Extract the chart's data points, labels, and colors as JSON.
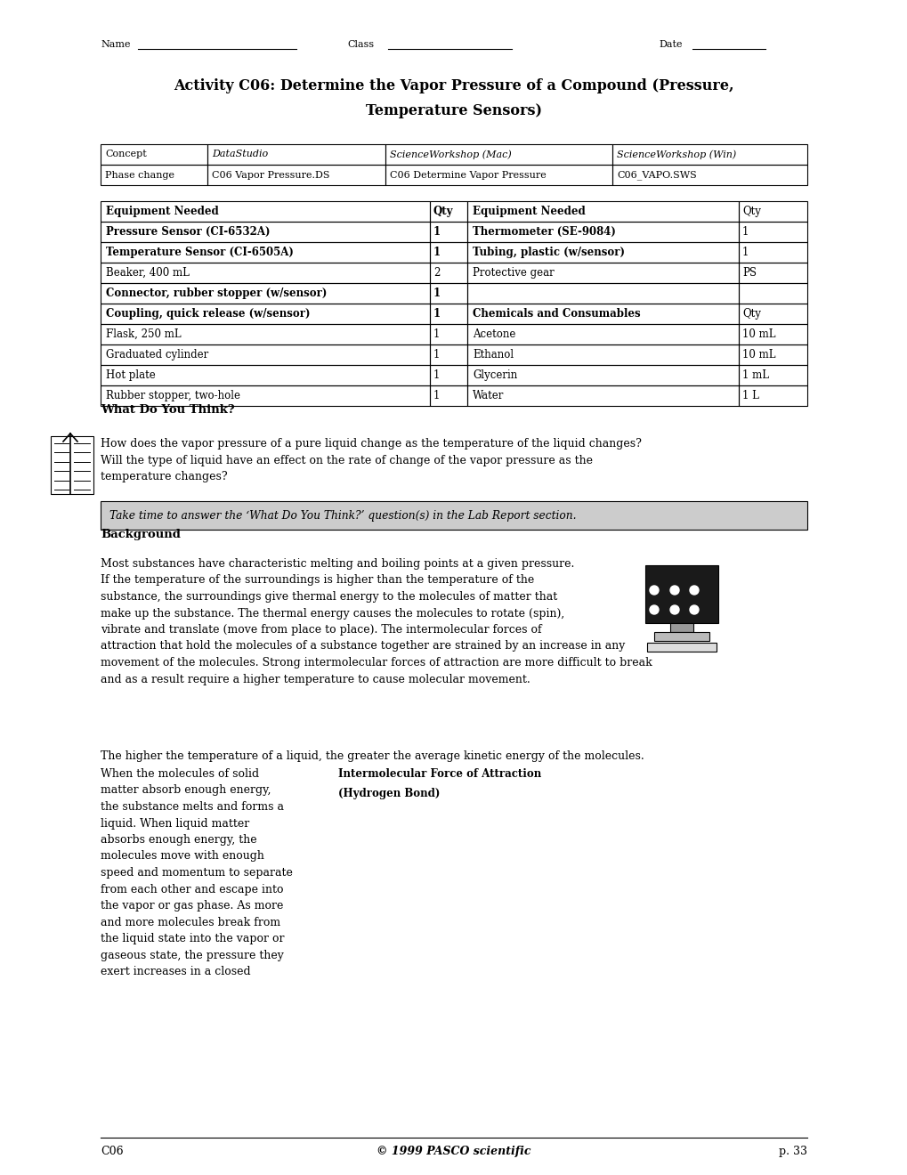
{
  "title_line1": "Activity C06: Determine the Vapor Pressure of a Compound (Pressure,",
  "title_line2": "Temperature Sensors)",
  "concept_headers": [
    "Concept",
    "DataStudio",
    "ScienceWorkshop (Mac)",
    "ScienceWorkshop (Win)"
  ],
  "concept_row": [
    "Phase change",
    "C06 Vapor Pressure.DS",
    "C06 Determine Vapor Pressure",
    "C06_VAPO.SWS"
  ],
  "equipment_table_left": [
    {
      "item": "Equipment Needed",
      "qty": "Qty",
      "bold": true
    },
    {
      "item": "Pressure Sensor (CI-6532A)",
      "qty": "1",
      "bold": true
    },
    {
      "item": "Temperature Sensor (CI-6505A)",
      "qty": "1",
      "bold": true
    },
    {
      "item": "Beaker, 400 mL",
      "qty": "2",
      "bold": false
    },
    {
      "item": "Connector, rubber stopper (w/sensor)",
      "qty": "1",
      "bold": true
    },
    {
      "item": "Coupling, quick release (w/sensor)",
      "qty": "1",
      "bold": true
    },
    {
      "item": "Flask, 250 mL",
      "qty": "1",
      "bold": false
    },
    {
      "item": "Graduated cylinder",
      "qty": "1",
      "bold": false
    },
    {
      "item": "Hot plate",
      "qty": "1",
      "bold": false
    },
    {
      "item": "Rubber stopper, two-hole",
      "qty": "1",
      "bold": false
    }
  ],
  "equipment_table_right": [
    {
      "item": "Equipment Needed",
      "qty": "Qty",
      "bold": true
    },
    {
      "item": "Thermometer (SE-9084)",
      "qty": "1",
      "bold": true
    },
    {
      "item": "Tubing, plastic (w/sensor)",
      "qty": "1",
      "bold": true
    },
    {
      "item": "Protective gear",
      "qty": "PS",
      "bold": false
    },
    {
      "item": "",
      "qty": "",
      "bold": false
    },
    {
      "item": "Chemicals and Consumables",
      "qty": "Qty",
      "bold": true
    },
    {
      "item": "Acetone",
      "qty": "10 mL",
      "bold": false
    },
    {
      "item": "Ethanol",
      "qty": "10 mL",
      "bold": false
    },
    {
      "item": "Glycerin",
      "qty": "1 mL",
      "bold": false
    },
    {
      "item": "Water",
      "qty": "1 L",
      "bold": false
    }
  ],
  "what_do_you_think_label": "What Do You Think?",
  "italic_box_text": "Take time to answer the ‘What Do You Think?’ question(s) in the Lab Report section.",
  "background_label": "Background",
  "intermolecular_label": "Intermolecular Force of Attraction",
  "intermolecular_sub": "(Hydrogen Bond)",
  "footer_left": "C06",
  "footer_center": "© 1999 PASCO scientific",
  "footer_right": "p. 33",
  "bg_color": "#ffffff"
}
